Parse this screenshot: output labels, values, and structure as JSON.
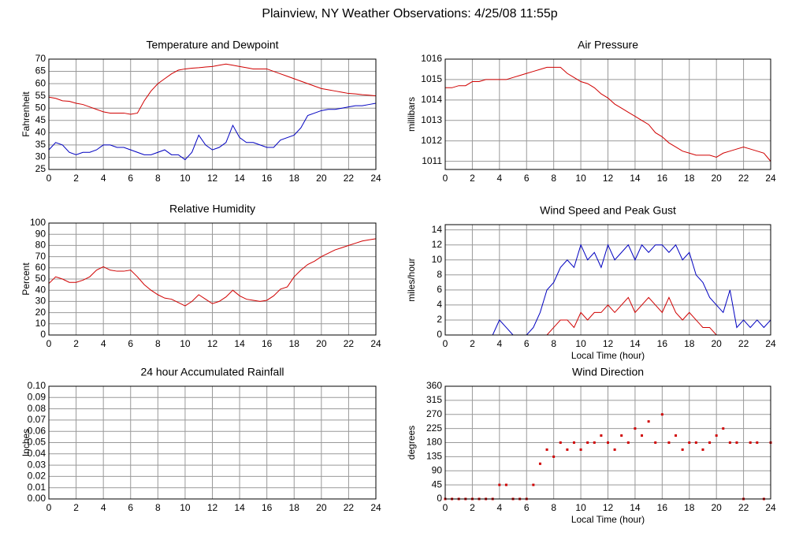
{
  "title": "Plainview, NY Weather Observations: 4/25/08 11:55p",
  "chart_data": [
    {
      "type": "line",
      "title": "Temperature and Dewpoint",
      "ylabel": "Fahrenheit",
      "x": [
        0,
        0.5,
        1,
        1.5,
        2,
        2.5,
        3,
        3.5,
        4,
        4.5,
        5,
        5.5,
        6,
        6.5,
        7,
        7.5,
        8,
        8.5,
        9,
        9.5,
        10,
        10.5,
        11,
        11.5,
        12,
        12.5,
        13,
        13.5,
        14,
        14.5,
        15,
        15.5,
        16,
        16.5,
        17,
        17.5,
        18,
        18.5,
        19,
        19.5,
        20,
        20.5,
        21,
        21.5,
        22,
        22.5,
        23,
        23.5,
        24
      ],
      "series": [
        {
          "color": "#d00000",
          "values": [
            54.5,
            54,
            53,
            52.8,
            52,
            51.5,
            50.5,
            49.5,
            48.5,
            48,
            48,
            48,
            47.5,
            48,
            53,
            57,
            60,
            62,
            64,
            65.5,
            66,
            66.3,
            66.5,
            66.8,
            67,
            67.5,
            68,
            67.5,
            67,
            66.5,
            66,
            66,
            66,
            65,
            64,
            63,
            62,
            61,
            60,
            59,
            58,
            57.5,
            57,
            56.5,
            56,
            55.8,
            55.5,
            55.3,
            55
          ]
        },
        {
          "color": "#0000c0",
          "values": [
            33,
            36,
            35,
            32,
            31,
            32,
            32,
            33,
            35,
            35,
            34,
            34,
            33,
            32,
            31,
            31,
            32,
            33,
            31,
            31,
            29,
            32,
            39,
            35,
            33,
            34,
            36,
            43,
            38,
            36,
            36,
            35,
            34,
            34,
            37,
            38,
            39,
            42,
            47,
            48,
            49,
            49.5,
            49.5,
            50,
            50.5,
            51,
            51,
            51.5,
            52
          ]
        }
      ],
      "xlim": [
        0,
        24
      ],
      "xticks": [
        0,
        2,
        4,
        6,
        8,
        10,
        12,
        14,
        16,
        18,
        20,
        22,
        24
      ],
      "ylim": [
        25,
        70
      ],
      "yticks": [
        25,
        30,
        35,
        40,
        45,
        50,
        55,
        60,
        65,
        70
      ],
      "grid": true
    },
    {
      "type": "line",
      "title": "Air Pressure",
      "ylabel": "millibars",
      "x": [
        0,
        0.5,
        1,
        1.5,
        2,
        2.5,
        3,
        3.5,
        4,
        4.5,
        5,
        5.5,
        6,
        6.5,
        7,
        7.5,
        8,
        8.5,
        9,
        9.5,
        10,
        10.5,
        11,
        11.5,
        12,
        12.5,
        13,
        13.5,
        14,
        14.5,
        15,
        15.5,
        16,
        16.5,
        17,
        17.5,
        18,
        18.5,
        19,
        19.5,
        20,
        20.5,
        21,
        21.5,
        22,
        22.5,
        23,
        23.5,
        24
      ],
      "series": [
        {
          "color": "#d00000",
          "values": [
            1014.6,
            1014.6,
            1014.7,
            1014.7,
            1014.9,
            1014.9,
            1015,
            1015,
            1015,
            1015,
            1015.1,
            1015.2,
            1015.3,
            1015.4,
            1015.5,
            1015.6,
            1015.6,
            1015.6,
            1015.3,
            1015.1,
            1014.9,
            1014.8,
            1014.6,
            1014.3,
            1014.1,
            1013.8,
            1013.6,
            1013.4,
            1013.2,
            1013,
            1012.8,
            1012.4,
            1012.2,
            1011.9,
            1011.7,
            1011.5,
            1011.4,
            1011.3,
            1011.3,
            1011.3,
            1011.2,
            1011.4,
            1011.5,
            1011.6,
            1011.7,
            1011.6,
            1011.5,
            1011.4,
            1011
          ]
        }
      ],
      "xlim": [
        0,
        24
      ],
      "xticks": [
        0,
        2,
        4,
        6,
        8,
        10,
        12,
        14,
        16,
        18,
        20,
        22,
        24
      ],
      "ylim": [
        1010.6,
        1016
      ],
      "yticks": [
        1011,
        1012,
        1013,
        1014,
        1015,
        1016
      ],
      "grid": true
    },
    {
      "type": "line",
      "title": "Relative Humidity",
      "ylabel": "Percent",
      "x": [
        0,
        0.5,
        1,
        1.5,
        2,
        2.5,
        3,
        3.5,
        4,
        4.5,
        5,
        5.5,
        6,
        6.5,
        7,
        7.5,
        8,
        8.5,
        9,
        9.5,
        10,
        10.5,
        11,
        11.5,
        12,
        12.5,
        13,
        13.5,
        14,
        14.5,
        15,
        15.5,
        16,
        16.5,
        17,
        17.5,
        18,
        18.5,
        19,
        19.5,
        20,
        20.5,
        21,
        21.5,
        22,
        22.5,
        23,
        23.5,
        24
      ],
      "series": [
        {
          "color": "#d00000",
          "values": [
            46,
            52,
            50,
            47,
            47,
            49,
            52,
            58,
            61,
            58,
            57,
            57,
            58,
            52,
            45,
            40,
            36,
            33,
            32,
            29,
            26,
            30,
            36,
            32,
            28,
            30,
            34,
            40,
            35,
            32,
            31,
            30,
            31,
            35,
            41,
            43,
            52,
            58,
            63,
            66,
            70,
            73,
            76,
            78,
            80,
            82,
            84,
            85,
            86
          ]
        }
      ],
      "xlim": [
        0,
        24
      ],
      "xticks": [
        0,
        2,
        4,
        6,
        8,
        10,
        12,
        14,
        16,
        18,
        20,
        22,
        24
      ],
      "ylim": [
        0,
        100
      ],
      "yticks": [
        0,
        10,
        20,
        30,
        40,
        50,
        60,
        70,
        80,
        90,
        100
      ],
      "grid": true
    },
    {
      "type": "line",
      "title": "Wind Speed and Peak Gust",
      "ylabel": "miles/hour",
      "xlabel": "Local Time (hour)",
      "x": [
        0,
        0.5,
        1,
        1.5,
        2,
        2.5,
        3,
        3.5,
        4,
        4.5,
        5,
        5.5,
        6,
        6.5,
        7,
        7.5,
        8,
        8.5,
        9,
        9.5,
        10,
        10.5,
        11,
        11.5,
        12,
        12.5,
        13,
        13.5,
        14,
        14.5,
        15,
        15.5,
        16,
        16.5,
        17,
        17.5,
        18,
        18.5,
        19,
        19.5,
        20,
        20.5,
        21,
        21.5,
        22,
        22.5,
        23,
        23.5,
        24
      ],
      "series": [
        {
          "color": "#0000c0",
          "values": [
            0,
            0,
            0,
            0,
            0,
            0,
            0,
            0,
            2,
            1,
            0,
            0,
            0,
            1,
            3,
            6,
            7,
            9,
            10,
            9,
            12,
            10,
            11,
            9,
            12,
            10,
            11,
            12,
            10,
            12,
            11,
            12,
            12,
            11,
            12,
            10,
            11,
            8,
            7,
            5,
            4,
            3,
            6,
            1,
            2,
            1,
            2,
            1,
            2
          ]
        },
        {
          "color": "#d00000",
          "values": [
            0,
            0,
            0,
            0,
            0,
            0,
            0,
            0,
            0,
            0,
            0,
            0,
            0,
            0,
            0,
            0,
            1,
            2,
            2,
            1,
            3,
            2,
            3,
            3,
            4,
            3,
            4,
            5,
            3,
            4,
            5,
            4,
            3,
            5,
            3,
            2,
            3,
            2,
            1,
            1,
            0,
            0,
            0,
            0,
            0,
            0,
            0,
            0,
            0
          ]
        }
      ],
      "xlim": [
        0,
        24
      ],
      "xticks": [
        0,
        2,
        4,
        6,
        8,
        10,
        12,
        14,
        16,
        18,
        20,
        22,
        24
      ],
      "ylim": [
        0,
        14.7
      ],
      "yticks": [
        0,
        2,
        4,
        6,
        8,
        10,
        12,
        14
      ],
      "grid": true
    },
    {
      "type": "line",
      "title": "24 hour Accumulated Rainfall",
      "ylabel": "Inches",
      "x": [
        0,
        24
      ],
      "series": [
        {
          "color": "#d00000",
          "values": [
            0,
            0
          ]
        }
      ],
      "xlim": [
        0,
        24
      ],
      "xticks": [
        0,
        2,
        4,
        6,
        8,
        10,
        12,
        14,
        16,
        18,
        20,
        22,
        24
      ],
      "ylim": [
        0,
        0.1
      ],
      "yticks": [
        {
          "value": 0,
          "label": "0.00"
        },
        {
          "value": 0.01,
          "label": "0.01"
        },
        {
          "value": 0.02,
          "label": "0.02"
        },
        {
          "value": 0.03,
          "label": "0.03"
        },
        {
          "value": 0.04,
          "label": "0.04"
        },
        {
          "value": 0.05,
          "label": "0.05"
        },
        {
          "value": 0.06,
          "label": "0.06"
        },
        {
          "value": 0.07,
          "label": "0.07"
        },
        {
          "value": 0.08,
          "label": "0.08"
        },
        {
          "value": 0.09,
          "label": "0.09"
        },
        {
          "value": 0.1,
          "label": "0.10"
        }
      ],
      "grid": true
    },
    {
      "type": "scatter",
      "title": "Wind Direction",
      "ylabel": "degrees",
      "xlabel": "Local Time (hour)",
      "x": [
        0,
        0.5,
        1,
        1.5,
        2,
        2.5,
        3,
        3.5,
        4,
        4.5,
        5,
        5.5,
        6,
        6.5,
        7,
        7.5,
        8,
        8.5,
        9,
        9.5,
        10,
        10.5,
        11,
        11.5,
        12,
        12.5,
        13,
        13.5,
        14,
        14.5,
        15,
        15.5,
        16,
        16.5,
        17,
        17.5,
        18,
        18.5,
        19,
        19.5,
        20,
        20.5,
        21,
        21.5,
        22,
        22.5,
        23,
        23.5,
        24
      ],
      "series": [
        {
          "color": "#d00000",
          "values": [
            0,
            0,
            0,
            0,
            0,
            0,
            0,
            0,
            45,
            45,
            0,
            0,
            0,
            45,
            112.5,
            157.5,
            135,
            180,
            157.5,
            180,
            157.5,
            180,
            180,
            202.5,
            180,
            157.5,
            202.5,
            180,
            225,
            202.5,
            247.5,
            180,
            270,
            180,
            202.5,
            157.5,
            180,
            180,
            157.5,
            180,
            202.5,
            225,
            180,
            180,
            0,
            180,
            180,
            0,
            180
          ]
        }
      ],
      "xlim": [
        0,
        24
      ],
      "xticks": [
        0,
        2,
        4,
        6,
        8,
        10,
        12,
        14,
        16,
        18,
        20,
        22,
        24
      ],
      "ylim": [
        0,
        360
      ],
      "yticks": [
        0,
        45,
        90,
        135,
        180,
        225,
        270,
        315,
        360
      ],
      "grid": true
    }
  ]
}
